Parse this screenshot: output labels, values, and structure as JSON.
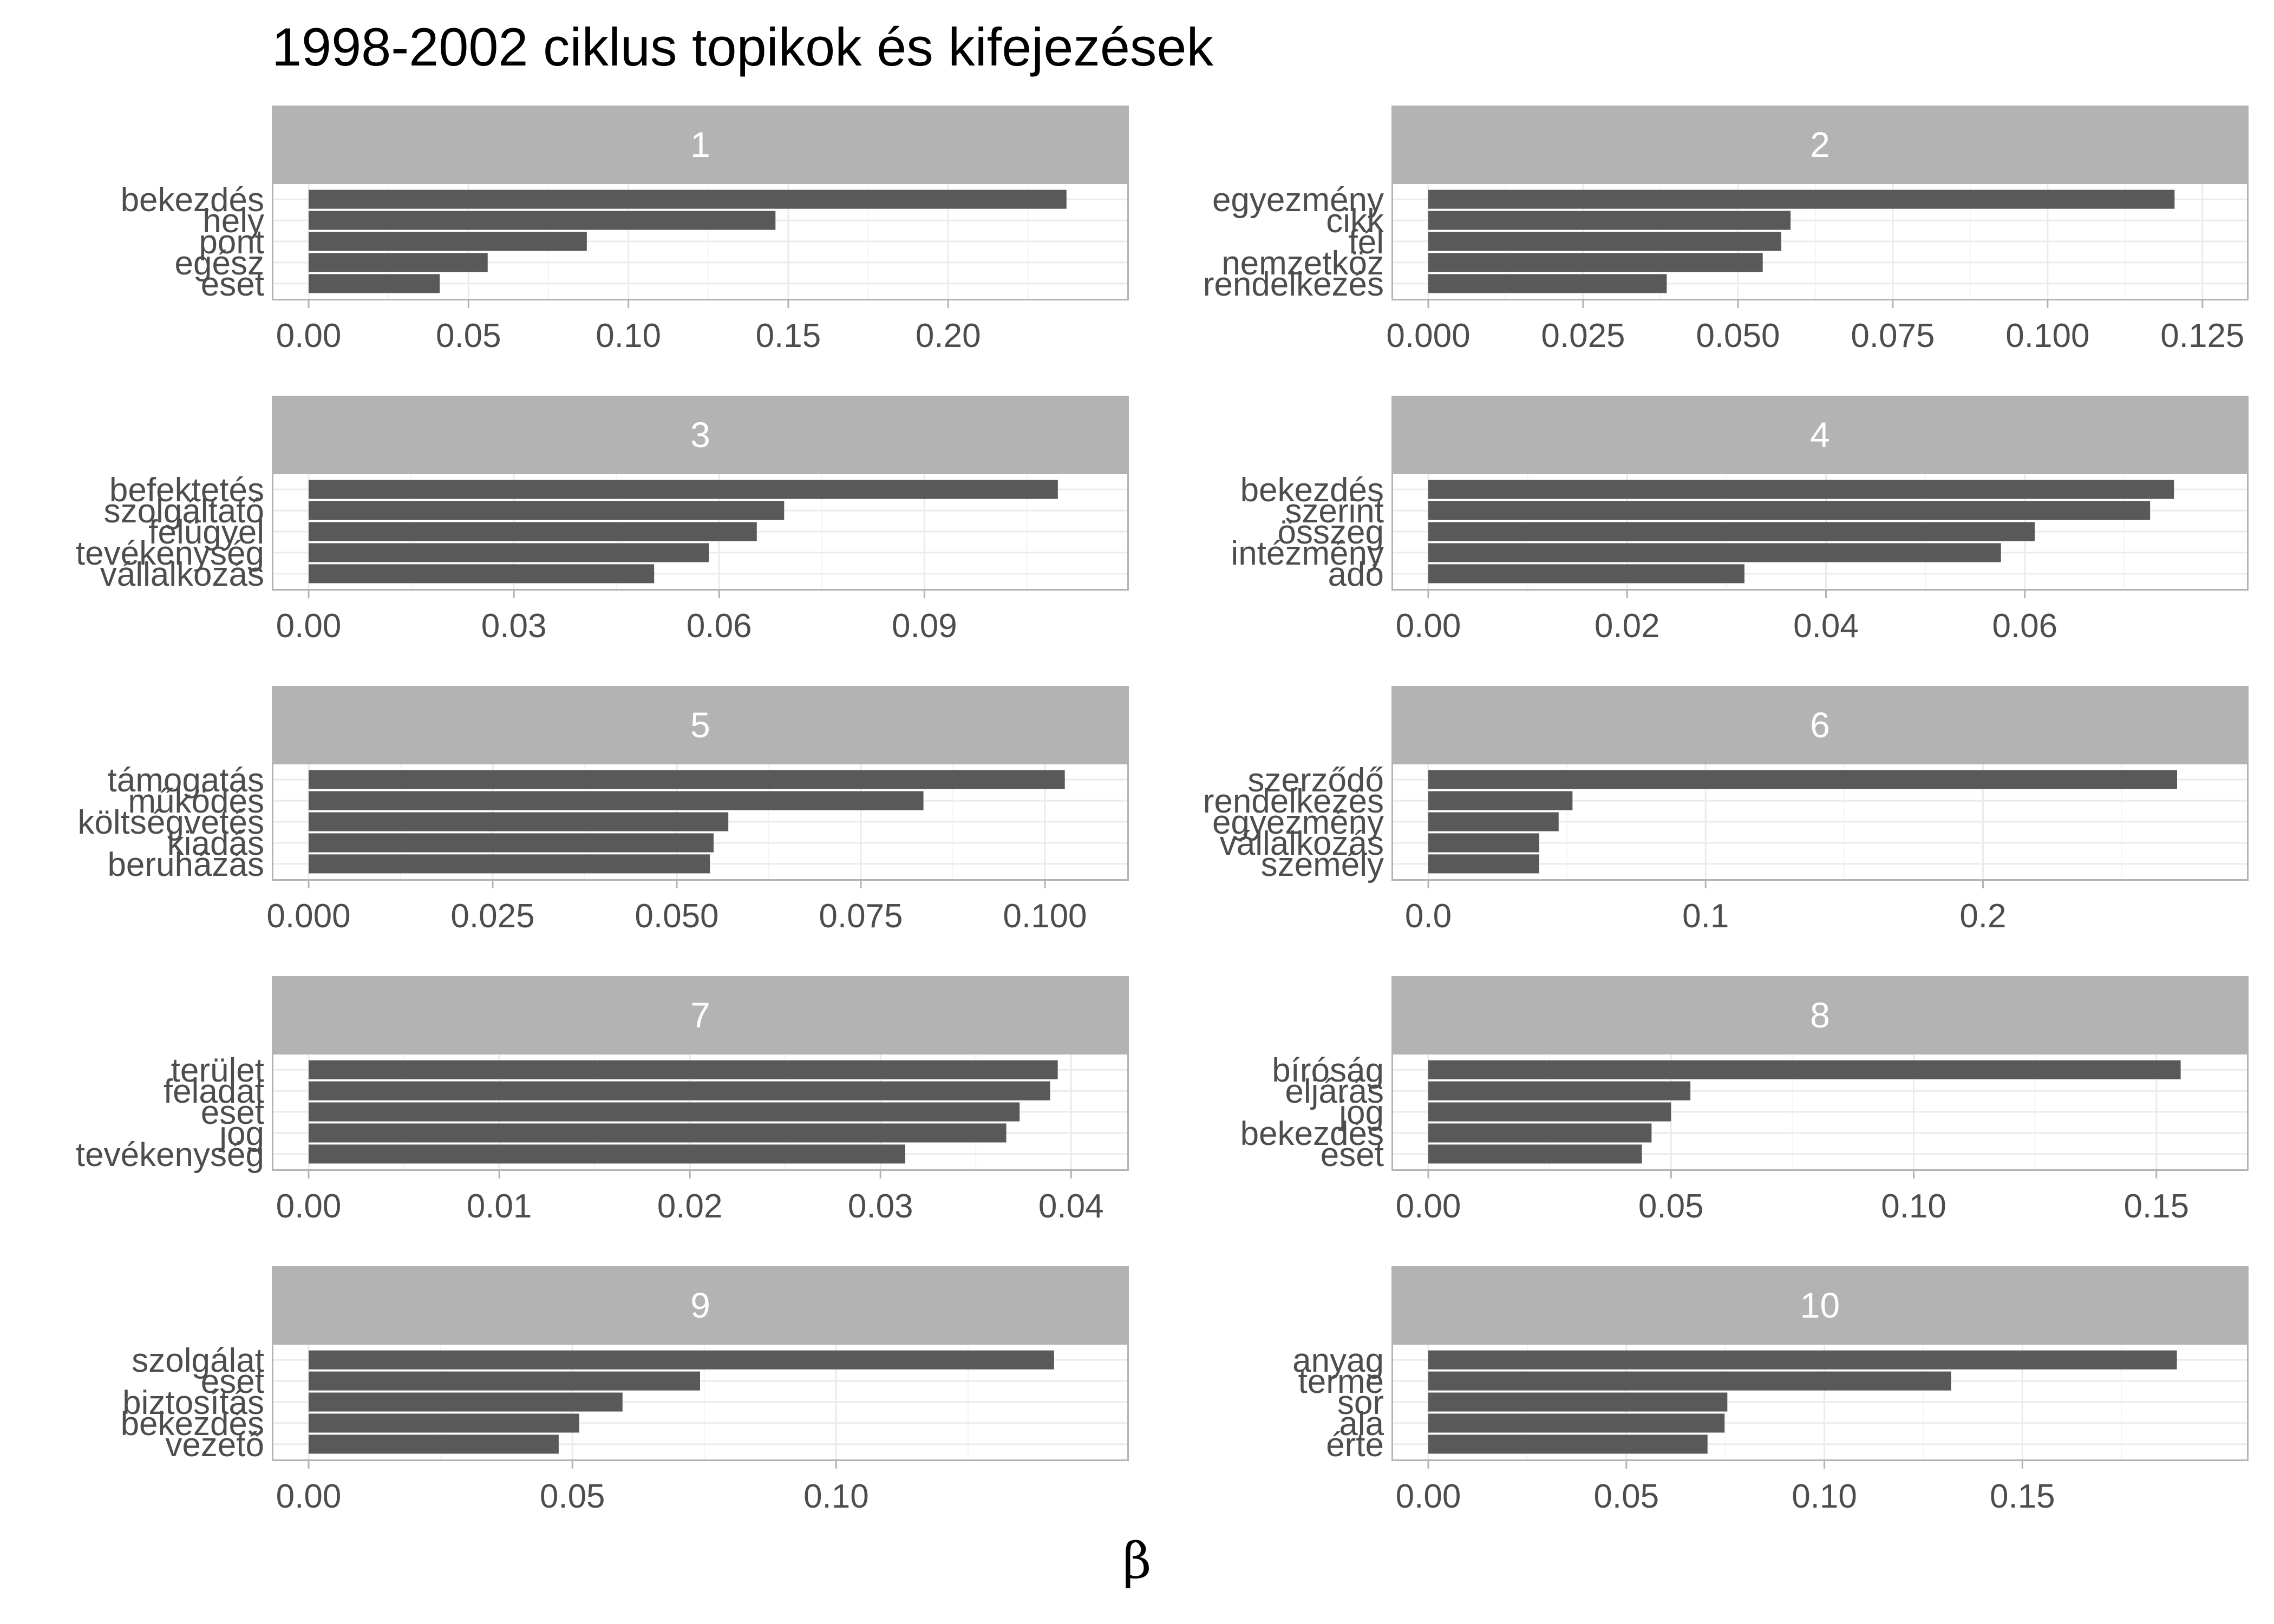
{
  "chart_data": {
    "type": "bar",
    "orientation": "horizontal",
    "title": "1998-2002 ciklus topikok és kifejezések",
    "xlabel": "β",
    "ylabel": "",
    "grid": true,
    "facets": [
      {
        "label": "1",
        "xlim": [
          0,
          0.245
        ],
        "ticks": [
          0,
          0.05,
          0.1,
          0.15,
          0.2
        ],
        "tick_labels": [
          "0.00",
          "0.05",
          "0.10",
          "0.15",
          "0.20"
        ],
        "categories": [
          "bekezdés",
          "hely",
          "pont",
          "egész",
          "eset"
        ],
        "values": [
          0.237,
          0.146,
          0.087,
          0.056,
          0.041
        ]
      },
      {
        "label": "2",
        "xlim": [
          0,
          0.1265
        ],
        "ticks": [
          0,
          0.025,
          0.05,
          0.075,
          0.1,
          0.125
        ],
        "tick_labels": [
          "0.000",
          "0.025",
          "0.050",
          "0.075",
          "0.100",
          "0.125"
        ],
        "categories": [
          "egyezmény",
          "cikk",
          "fél",
          "nemzetköz",
          "rendelkezés"
        ],
        "values": [
          0.1205,
          0.0585,
          0.057,
          0.054,
          0.0385
        ]
      },
      {
        "label": "3",
        "xlim": [
          0,
          0.1145
        ],
        "ticks": [
          0,
          0.03,
          0.06,
          0.09
        ],
        "tick_labels": [
          "0.00",
          "0.03",
          "0.06",
          "0.09"
        ],
        "categories": [
          "befektetés",
          "szolgáltató",
          "felügyel",
          "tevékenység",
          "vállalkozás"
        ],
        "values": [
          0.1095,
          0.0695,
          0.0655,
          0.0585,
          0.0505
        ]
      },
      {
        "label": "4",
        "xlim": [
          0,
          0.0788
        ],
        "ticks": [
          0,
          0.02,
          0.04,
          0.06
        ],
        "tick_labels": [
          "0.00",
          "0.02",
          "0.04",
          "0.06"
        ],
        "categories": [
          "bekezdés",
          "szerint",
          "összeg",
          "intézmény",
          "adó"
        ],
        "values": [
          0.075,
          0.0726,
          0.061,
          0.0576,
          0.0318
        ]
      },
      {
        "label": "5",
        "xlim": [
          0,
          0.1064
        ],
        "ticks": [
          0,
          0.025,
          0.05,
          0.075,
          0.1
        ],
        "tick_labels": [
          "0.000",
          "0.025",
          "0.050",
          "0.075",
          "0.100"
        ],
        "categories": [
          "támogatás",
          "működés",
          "költségvetés",
          "kiadás",
          "beruházás"
        ],
        "values": [
          0.1027,
          0.0835,
          0.057,
          0.055,
          0.0545
        ]
      },
      {
        "label": "6",
        "xlim": [
          0,
          0.2825
        ],
        "ticks": [
          0,
          0.1,
          0.2
        ],
        "tick_labels": [
          "0.0",
          "0.1",
          "0.2"
        ],
        "categories": [
          "szerződő",
          "rendelkezés",
          "egyezmény",
          "vállalkozás",
          "személy"
        ],
        "values": [
          0.27,
          0.052,
          0.047,
          0.04,
          0.04
        ]
      },
      {
        "label": "7",
        "xlim": [
          0,
          0.0411
        ],
        "ticks": [
          0,
          0.01,
          0.02,
          0.03,
          0.04
        ],
        "tick_labels": [
          "0.00",
          "0.01",
          "0.02",
          "0.03",
          "0.04"
        ],
        "categories": [
          "terület",
          "feladat",
          "eset",
          "jog",
          "tevékenység"
        ],
        "values": [
          0.0393,
          0.0389,
          0.0373,
          0.0366,
          0.0313
        ]
      },
      {
        "label": "8",
        "xlim": [
          0,
          0.1614
        ],
        "ticks": [
          0,
          0.05,
          0.1,
          0.15
        ],
        "tick_labels": [
          "0.00",
          "0.05",
          "0.10",
          "0.15"
        ],
        "categories": [
          "bíróság",
          "eljárás",
          "jog",
          "bekezdés",
          "eset"
        ],
        "values": [
          0.155,
          0.054,
          0.05,
          0.046,
          0.044
        ]
      },
      {
        "label": "9",
        "xlim": [
          0,
          0.1485
        ],
        "ticks": [
          0,
          0.05,
          0.1
        ],
        "tick_labels": [
          "0.00",
          "0.05",
          "0.10"
        ],
        "categories": [
          "szolgálat",
          "eset",
          "biztosítás",
          "bekezdés",
          "vezető"
        ],
        "values": [
          0.1413,
          0.0742,
          0.0595,
          0.0513,
          0.0474
        ]
      },
      {
        "label": "10",
        "xlim": [
          0,
          0.1978
        ],
        "ticks": [
          0,
          0.05,
          0.1,
          0.15
        ],
        "tick_labels": [
          "0.00",
          "0.05",
          "0.10",
          "0.15"
        ],
        "categories": [
          "anyag",
          "terme",
          "sor",
          "ala",
          "érte"
        ],
        "values": [
          0.189,
          0.132,
          0.0755,
          0.0748,
          0.0705
        ]
      }
    ]
  },
  "colors": {
    "bar": "#595959",
    "strip": "#b3b3b3",
    "strip_text": "#ffffff",
    "grid_major": "#ebebeb",
    "grid_minor": "#f4f4f4",
    "panel_border": "#b3b3b3",
    "axis_text": "#4d4d4d"
  }
}
